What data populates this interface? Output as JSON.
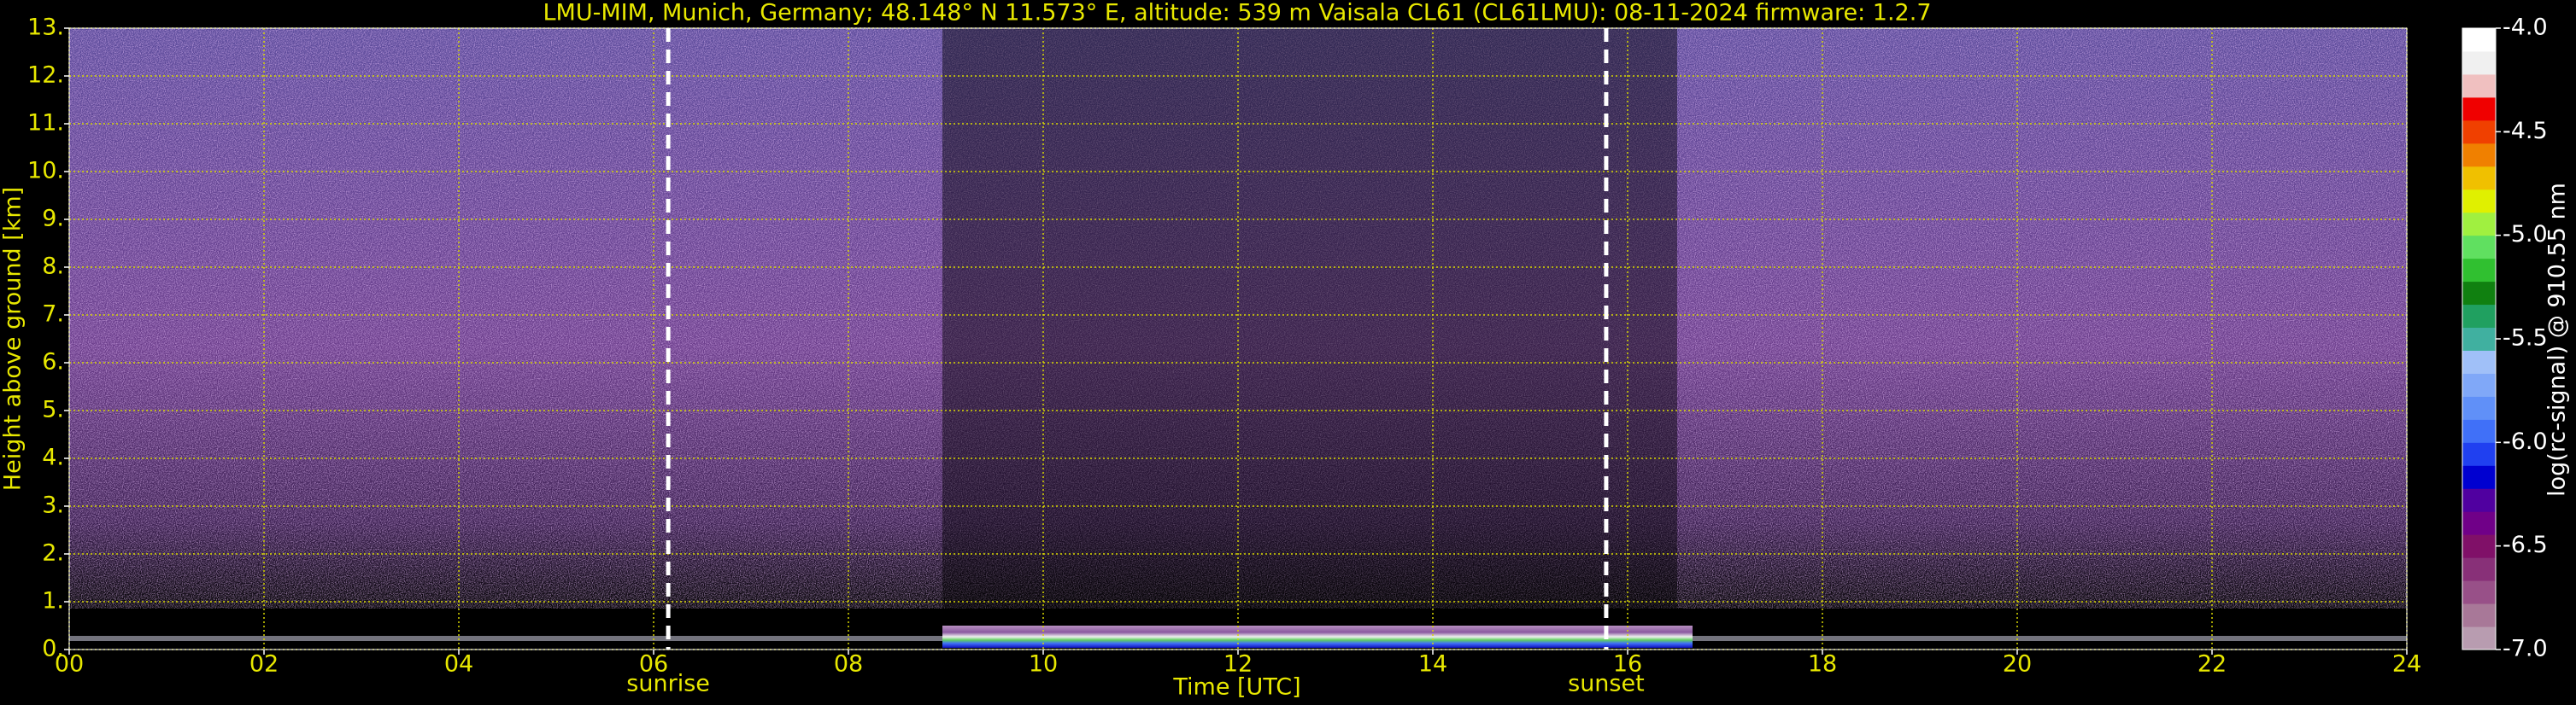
{
  "chart_data": {
    "type": "heatmap",
    "title": "LMU-MIM, Munich, Germany; 48.148° N 11.573° E, altitude: 539 m    Vaisala CL61 (CL61LMU): 08-11-2024    firmware: 1.2.7",
    "x_label": "Time [UTC]",
    "y_label": "Height above ground [km]",
    "colorbar_label": "log(rc-signal) @ 910.55 nm",
    "xlim": [
      0,
      24
    ],
    "xticks": [
      {
        "value": 0,
        "label": "00"
      },
      {
        "value": 2,
        "label": "02"
      },
      {
        "value": 4,
        "label": "04"
      },
      {
        "value": 6,
        "label": "06"
      },
      {
        "value": 8,
        "label": "08"
      },
      10,
      12,
      14,
      16,
      18,
      20,
      22,
      24
    ],
    "ylim": [
      0,
      13
    ],
    "yticks": [
      {
        "value": 0,
        "label": "0."
      },
      {
        "value": 1,
        "label": "1."
      },
      {
        "value": 2,
        "label": "2."
      },
      {
        "value": 3,
        "label": "3."
      },
      {
        "value": 4,
        "label": "4."
      },
      {
        "value": 5,
        "label": "5."
      },
      {
        "value": 6,
        "label": "6."
      },
      {
        "value": 7,
        "label": "7."
      },
      {
        "value": 8,
        "label": "8."
      },
      {
        "value": 9,
        "label": "9."
      },
      {
        "value": 10,
        "label": "10."
      },
      {
        "value": 11,
        "label": "11."
      },
      {
        "value": 12,
        "label": "12."
      },
      {
        "value": 13,
        "label": "13."
      }
    ],
    "grid": true,
    "grid_color": "#d8d800",
    "clim": [
      -7,
      -4
    ],
    "cticks": [
      {
        "value": -7,
        "label": "-7.0"
      },
      -6.5,
      {
        "value": -6,
        "label": "-6.0"
      },
      -5.5,
      {
        "value": -5,
        "label": "-5.0"
      },
      -4.5,
      {
        "value": -4,
        "label": "-4.0"
      }
    ],
    "colormap": [
      "#b89cb0",
      "#a87898",
      "#985088",
      "#883078",
      "#801068",
      "#700088",
      "#5000a0",
      "#0000d0",
      "#2040f0",
      "#4070f8",
      "#6090f8",
      "#80a8f8",
      "#a0c0f8",
      "#40b0a0",
      "#20a060",
      "#108010",
      "#30c030",
      "#60e060",
      "#a0f040",
      "#e0f000",
      "#f0c000",
      "#f08000",
      "#f04000",
      "#f00000",
      "#f0c0c0",
      "#f0f0f0",
      "#ffffff"
    ],
    "annotations": [
      {
        "text": "sunrise",
        "x": 6.15
      },
      {
        "text": "sunset",
        "x": 15.78
      }
    ]
  }
}
